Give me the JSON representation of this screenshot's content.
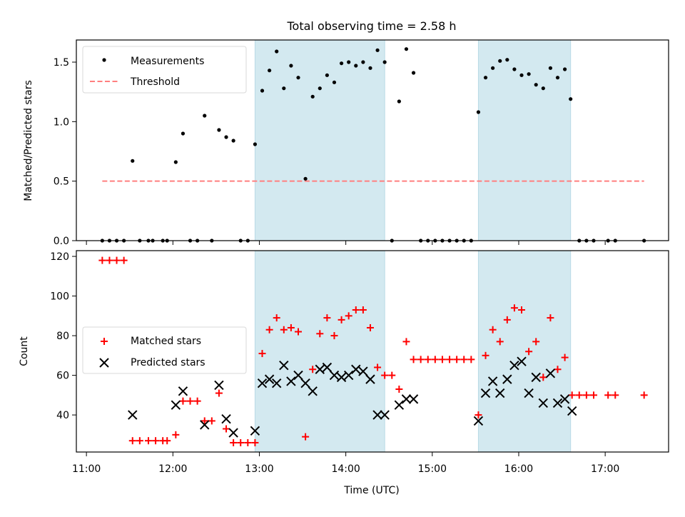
{
  "chart_data": [
    {
      "type": "scatter",
      "title": "Total observing time = 2.58 h",
      "xlabel": "",
      "ylabel": "Matched/Predicted stars",
      "xlim": [
        "10:53",
        "17:44"
      ],
      "ylim": [
        0,
        1.686
      ],
      "yticks": [
        0.0,
        0.5,
        1.0,
        1.5
      ],
      "ytick_labels": [
        "0.0",
        "0.5",
        "1.0",
        "1.5"
      ],
      "legend": {
        "placement": "top-left",
        "entries": [
          "Measurements",
          "Threshold"
        ]
      },
      "shaded_spans": [
        [
          "12:57",
          "14:27"
        ],
        [
          "15:32",
          "16:36"
        ]
      ],
      "series": [
        {
          "name": "Measurements",
          "marker": "dot",
          "color": "#000000",
          "points": [
            [
              "11:11",
              0
            ],
            [
              "11:16",
              0
            ],
            [
              "11:21",
              0
            ],
            [
              "11:26",
              0
            ],
            [
              "11:32",
              0.67
            ],
            [
              "11:37",
              0
            ],
            [
              "11:43",
              0
            ],
            [
              "11:46",
              0
            ],
            [
              "11:53",
              0
            ],
            [
              "11:56",
              0
            ],
            [
              "12:02",
              0.66
            ],
            [
              "12:07",
              0.9
            ],
            [
              "12:12",
              0
            ],
            [
              "12:17",
              0
            ],
            [
              "12:22",
              1.05
            ],
            [
              "12:27",
              0
            ],
            [
              "12:32",
              0.93
            ],
            [
              "12:37",
              0.87
            ],
            [
              "12:42",
              0.84
            ],
            [
              "12:47",
              0
            ],
            [
              "12:52",
              0
            ],
            [
              "12:57",
              0.81
            ],
            [
              "13:02",
              1.26
            ],
            [
              "13:07",
              1.43
            ],
            [
              "13:12",
              1.59
            ],
            [
              "13:17",
              1.28
            ],
            [
              "13:22",
              1.47
            ],
            [
              "13:27",
              1.37
            ],
            [
              "13:32",
              0.52
            ],
            [
              "13:37",
              1.21
            ],
            [
              "13:42",
              1.28
            ],
            [
              "13:47",
              1.39
            ],
            [
              "13:52",
              1.33
            ],
            [
              "13:57",
              1.49
            ],
            [
              "14:02",
              1.5
            ],
            [
              "14:07",
              1.47
            ],
            [
              "14:12",
              1.5
            ],
            [
              "14:17",
              1.45
            ],
            [
              "14:22",
              1.6
            ],
            [
              "14:27",
              1.5
            ],
            [
              "14:32",
              0
            ],
            [
              "14:37",
              1.17
            ],
            [
              "14:42",
              1.61
            ],
            [
              "14:47",
              1.41
            ],
            [
              "14:52",
              0
            ],
            [
              "14:57",
              0
            ],
            [
              "15:02",
              0
            ],
            [
              "15:07",
              0
            ],
            [
              "15:12",
              0
            ],
            [
              "15:17",
              0
            ],
            [
              "15:22",
              0
            ],
            [
              "15:27",
              0
            ],
            [
              "15:32",
              1.08
            ],
            [
              "15:37",
              1.37
            ],
            [
              "15:42",
              1.45
            ],
            [
              "15:47",
              1.51
            ],
            [
              "15:52",
              1.52
            ],
            [
              "15:57",
              1.44
            ],
            [
              "16:02",
              1.39
            ],
            [
              "16:07",
              1.4
            ],
            [
              "16:12",
              1.31
            ],
            [
              "16:17",
              1.28
            ],
            [
              "16:22",
              1.45
            ],
            [
              "16:27",
              1.37
            ],
            [
              "16:32",
              1.44
            ],
            [
              "16:36",
              1.19
            ],
            [
              "16:42",
              0
            ],
            [
              "16:47",
              0
            ],
            [
              "16:52",
              0
            ],
            [
              "17:02",
              0
            ],
            [
              "17:07",
              0
            ],
            [
              "17:27",
              0
            ]
          ]
        },
        {
          "name": "Threshold",
          "style": "dashed",
          "color": "#ff7f7f",
          "points": [
            [
              "11:11",
              0.5
            ],
            [
              "17:27",
              0.5
            ]
          ]
        }
      ]
    },
    {
      "type": "scatter",
      "title": "",
      "xlabel": "Time (UTC)",
      "ylabel": "Count",
      "xlim": [
        "10:53",
        "17:44"
      ],
      "ylim": [
        21.3,
        122.9
      ],
      "yticks": [
        40,
        60,
        80,
        100,
        120
      ],
      "ytick_labels": [
        "40",
        "60",
        "80",
        "100",
        "120"
      ],
      "xticks": [
        "11:00",
        "12:00",
        "13:00",
        "14:00",
        "15:00",
        "16:00",
        "17:00"
      ],
      "legend": {
        "placement": "center-left",
        "entries": [
          "Matched stars",
          "Predicted stars"
        ]
      },
      "shaded_spans": [
        [
          "12:57",
          "14:27"
        ],
        [
          "15:32",
          "16:36"
        ]
      ],
      "series": [
        {
          "name": "Matched stars",
          "marker": "plus",
          "color": "#ff0000",
          "points": [
            [
              "11:11",
              118
            ],
            [
              "11:16",
              118
            ],
            [
              "11:21",
              118
            ],
            [
              "11:26",
              118
            ],
            [
              "11:32",
              27
            ],
            [
              "11:37",
              27
            ],
            [
              "11:43",
              27
            ],
            [
              "11:48",
              27
            ],
            [
              "11:53",
              27
            ],
            [
              "11:56",
              27
            ],
            [
              "12:02",
              30
            ],
            [
              "12:07",
              47
            ],
            [
              "12:12",
              47
            ],
            [
              "12:17",
              47
            ],
            [
              "12:22",
              37
            ],
            [
              "12:27",
              37
            ],
            [
              "12:32",
              51
            ],
            [
              "12:37",
              33
            ],
            [
              "12:42",
              26
            ],
            [
              "12:47",
              26
            ],
            [
              "12:52",
              26
            ],
            [
              "12:57",
              26
            ],
            [
              "13:02",
              71
            ],
            [
              "13:07",
              83
            ],
            [
              "13:12",
              89
            ],
            [
              "13:17",
              83
            ],
            [
              "13:22",
              84
            ],
            [
              "13:27",
              82
            ],
            [
              "13:32",
              29
            ],
            [
              "13:37",
              63
            ],
            [
              "13:42",
              81
            ],
            [
              "13:47",
              89
            ],
            [
              "13:52",
              80
            ],
            [
              "13:57",
              88
            ],
            [
              "14:02",
              90
            ],
            [
              "14:07",
              93
            ],
            [
              "14:12",
              93
            ],
            [
              "14:17",
              84
            ],
            [
              "14:22",
              64
            ],
            [
              "14:27",
              60
            ],
            [
              "14:32",
              60
            ],
            [
              "14:37",
              53
            ],
            [
              "14:42",
              77
            ],
            [
              "14:47",
              68
            ],
            [
              "14:52",
              68
            ],
            [
              "14:57",
              68
            ],
            [
              "15:02",
              68
            ],
            [
              "15:07",
              68
            ],
            [
              "15:12",
              68
            ],
            [
              "15:17",
              68
            ],
            [
              "15:22",
              68
            ],
            [
              "15:27",
              68
            ],
            [
              "15:32",
              40
            ],
            [
              "15:37",
              70
            ],
            [
              "15:42",
              83
            ],
            [
              "15:47",
              77
            ],
            [
              "15:52",
              88
            ],
            [
              "15:57",
              94
            ],
            [
              "16:02",
              93
            ],
            [
              "16:07",
              72
            ],
            [
              "16:12",
              77
            ],
            [
              "16:17",
              59
            ],
            [
              "16:22",
              89
            ],
            [
              "16:27",
              63
            ],
            [
              "16:32",
              69
            ],
            [
              "16:37",
              50
            ],
            [
              "16:42",
              50
            ],
            [
              "16:47",
              50
            ],
            [
              "16:52",
              50
            ],
            [
              "17:02",
              50
            ],
            [
              "17:07",
              50
            ],
            [
              "17:27",
              50
            ]
          ]
        },
        {
          "name": "Predicted stars",
          "marker": "x",
          "color": "#000000",
          "points": [
            [
              "11:32",
              40
            ],
            [
              "12:02",
              45
            ],
            [
              "12:07",
              52
            ],
            [
              "12:22",
              35
            ],
            [
              "12:32",
              55
            ],
            [
              "12:37",
              38
            ],
            [
              "12:42",
              31
            ],
            [
              "12:57",
              32
            ],
            [
              "13:02",
              56
            ],
            [
              "13:07",
              58
            ],
            [
              "13:12",
              56
            ],
            [
              "13:17",
              65
            ],
            [
              "13:22",
              57
            ],
            [
              "13:27",
              60
            ],
            [
              "13:32",
              56
            ],
            [
              "13:37",
              52
            ],
            [
              "13:42",
              63
            ],
            [
              "13:47",
              64
            ],
            [
              "13:52",
              60
            ],
            [
              "13:57",
              59
            ],
            [
              "14:02",
              60
            ],
            [
              "14:07",
              63
            ],
            [
              "14:12",
              62
            ],
            [
              "14:17",
              58
            ],
            [
              "14:22",
              40
            ],
            [
              "14:27",
              40
            ],
            [
              "14:37",
              45
            ],
            [
              "14:42",
              48
            ],
            [
              "14:47",
              48
            ],
            [
              "15:32",
              37
            ],
            [
              "15:37",
              51
            ],
            [
              "15:42",
              57
            ],
            [
              "15:47",
              51
            ],
            [
              "15:52",
              58
            ],
            [
              "15:57",
              65
            ],
            [
              "16:02",
              67
            ],
            [
              "16:07",
              51
            ],
            [
              "16:12",
              59
            ],
            [
              "16:17",
              46
            ],
            [
              "16:22",
              61
            ],
            [
              "16:27",
              46
            ],
            [
              "16:32",
              48
            ],
            [
              "16:37",
              42
            ]
          ]
        }
      ]
    }
  ],
  "colors": {
    "span_fill": "#d3e9f0",
    "span_edge": "#b9dae6",
    "threshold": "#ff7f7f",
    "matched": "#ff0000",
    "predicted": "#000000",
    "measurement": "#000000"
  }
}
